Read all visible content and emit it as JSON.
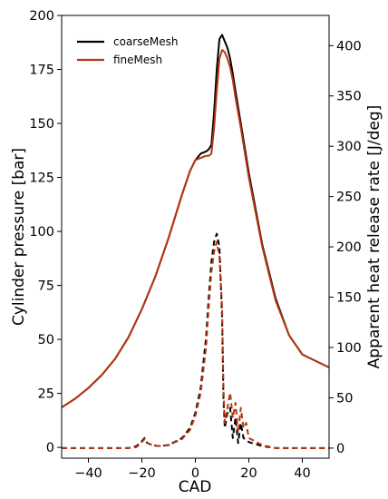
{
  "chart_data": {
    "type": "line",
    "xlabel": "CAD",
    "ylabel_left": "Cylinder pressure [bar]",
    "ylabel_right": "Apparent heat release rate [J/deg]",
    "xlim": [
      -50,
      50
    ],
    "ylim_left": [
      -5,
      200
    ],
    "ylim_right": [
      -10,
      430
    ],
    "xticks": [
      -40,
      -20,
      0,
      20,
      40
    ],
    "yticks_left": [
      0,
      25,
      50,
      75,
      100,
      125,
      150,
      175,
      200
    ],
    "yticks_right": [
      0,
      50,
      100,
      150,
      200,
      250,
      300,
      350,
      400
    ],
    "grid": false,
    "legend_position": "top-left",
    "series": [
      {
        "name": "coarseMesh",
        "axis": "left",
        "style": "solid",
        "color": "#000000",
        "x": [
          -50,
          -45,
          -40,
          -35,
          -30,
          -25,
          -20,
          -15,
          -10,
          -5,
          -2,
          0,
          2,
          4,
          5,
          6,
          7,
          8,
          9,
          10,
          11,
          12,
          13,
          14,
          15,
          17,
          20,
          25,
          30,
          35,
          40,
          45,
          50
        ],
        "y": [
          18.5,
          22.5,
          27.5,
          33.5,
          41,
          51,
          64,
          79,
          97,
          117,
          128,
          133,
          136,
          137,
          138,
          140,
          155,
          175,
          189,
          191,
          188,
          185,
          180,
          173,
          165,
          150,
          127,
          94,
          69,
          52,
          43,
          40,
          37
        ]
      },
      {
        "name": "fineMesh",
        "axis": "left",
        "style": "solid",
        "color": "#b5360f",
        "x": [
          -50,
          -45,
          -40,
          -35,
          -30,
          -25,
          -20,
          -15,
          -10,
          -5,
          -2,
          0,
          2,
          4,
          5,
          6,
          7,
          8,
          9,
          10,
          11,
          12,
          13,
          14,
          15,
          17,
          20,
          25,
          30,
          35,
          40,
          45,
          50
        ],
        "y": [
          18.5,
          22.5,
          27.5,
          33.5,
          41,
          51,
          64,
          79,
          97,
          117,
          128,
          133,
          134,
          135,
          135,
          136,
          148,
          165,
          180,
          184,
          183,
          180,
          176,
          170,
          162,
          148,
          125,
          93,
          68,
          52,
          43,
          40,
          37
        ]
      },
      {
        "name": "",
        "axis": "right",
        "style": "dashed",
        "color": "#000000",
        "x": [
          -50,
          -30,
          -25,
          -22,
          -20,
          -19,
          -18,
          -16,
          -14,
          -10,
          -5,
          -2,
          0,
          2,
          4,
          5,
          6,
          7,
          8,
          9,
          10,
          10.5,
          11,
          12,
          13,
          14,
          15,
          16,
          17,
          18,
          19,
          20,
          25,
          30,
          40,
          50
        ],
        "y": [
          0,
          0,
          0,
          2,
          7,
          10,
          5,
          3,
          2,
          3,
          10,
          20,
          35,
          60,
          110,
          150,
          185,
          205,
          213,
          200,
          130,
          50,
          20,
          35,
          40,
          10,
          30,
          5,
          25,
          10,
          8,
          6,
          2,
          0,
          0,
          0
        ]
      },
      {
        "name": "",
        "axis": "right",
        "style": "dashed",
        "color": "#b5360f",
        "x": [
          -50,
          -30,
          -25,
          -22,
          -20,
          -19,
          -18,
          -16,
          -14,
          -10,
          -5,
          -2,
          0,
          2,
          4,
          5,
          6,
          7,
          8,
          9,
          10,
          10.5,
          11,
          12,
          13,
          14,
          15,
          16,
          17,
          18,
          19,
          20,
          25,
          30,
          40,
          50
        ],
        "y": [
          0,
          0,
          0,
          1,
          6,
          9,
          5,
          3,
          2,
          3,
          9,
          18,
          32,
          55,
          100,
          140,
          175,
          195,
          205,
          190,
          140,
          60,
          25,
          40,
          55,
          30,
          45,
          15,
          40,
          20,
          25,
          10,
          3,
          0,
          0,
          0
        ]
      }
    ]
  }
}
